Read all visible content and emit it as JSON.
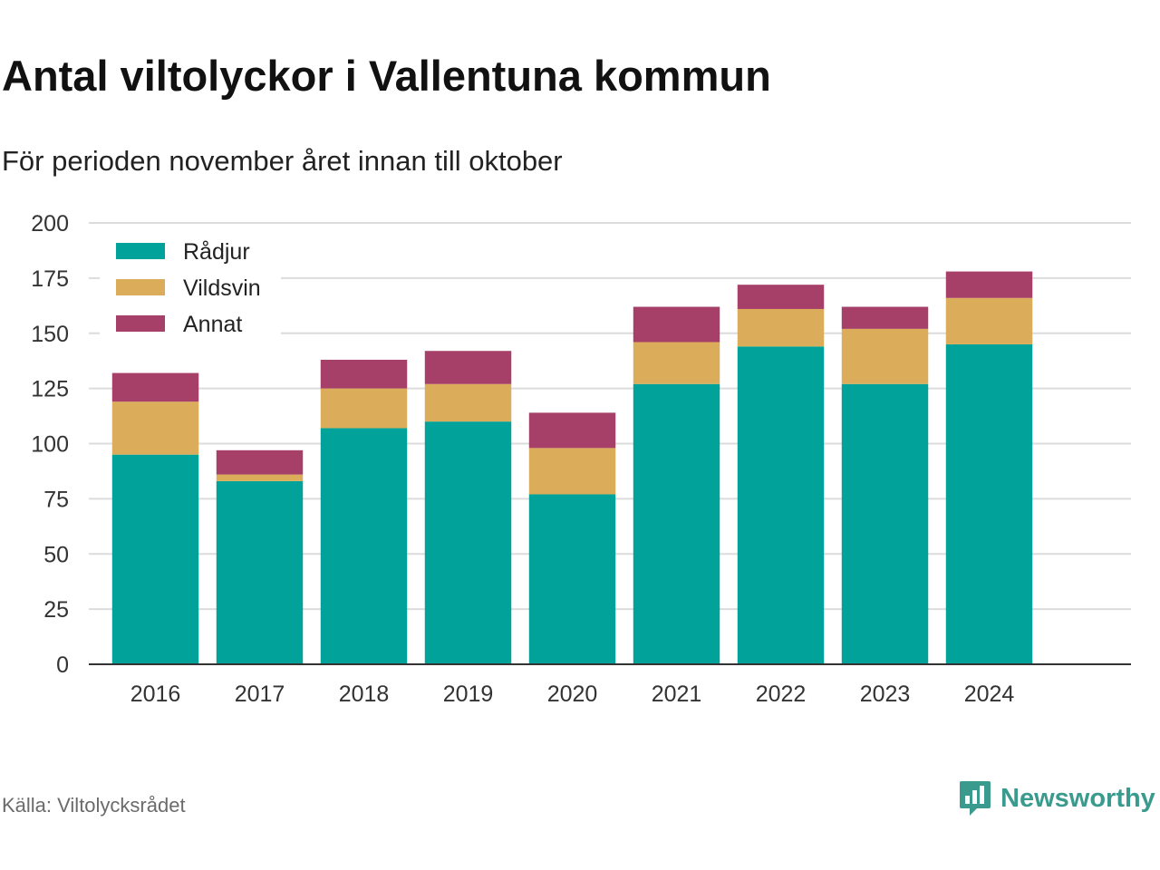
{
  "title": "Antal viltolyckor i Vallentuna kommun",
  "subtitle": "För perioden november året innan till oktober",
  "source": "Källa: Viltolycksrådet",
  "brand": {
    "name": "Newsworthy",
    "logo_icon": "newsworthy-logo-icon",
    "color": "#3a9a8e"
  },
  "chart_data": {
    "type": "bar",
    "stacked": true,
    "categories": [
      "2016",
      "2017",
      "2018",
      "2019",
      "2020",
      "2021",
      "2022",
      "2023",
      "2024"
    ],
    "series": [
      {
        "name": "Rådjur",
        "color": "#00a29a",
        "values": [
          95,
          83,
          107,
          110,
          77,
          127,
          144,
          127,
          145
        ]
      },
      {
        "name": "Vildsvin",
        "color": "#dbad5a",
        "values": [
          24,
          3,
          18,
          17,
          21,
          19,
          17,
          25,
          21
        ]
      },
      {
        "name": "Annat",
        "color": "#a64068",
        "values": [
          13,
          11,
          13,
          15,
          16,
          16,
          11,
          10,
          12
        ]
      }
    ],
    "ylim": [
      0,
      200
    ],
    "yticks": [
      "0",
      "25",
      "50",
      "75",
      "100",
      "125",
      "150",
      "175",
      "200"
    ],
    "grid": true,
    "legend_position": "top-left",
    "xlabel": "",
    "ylabel": ""
  }
}
